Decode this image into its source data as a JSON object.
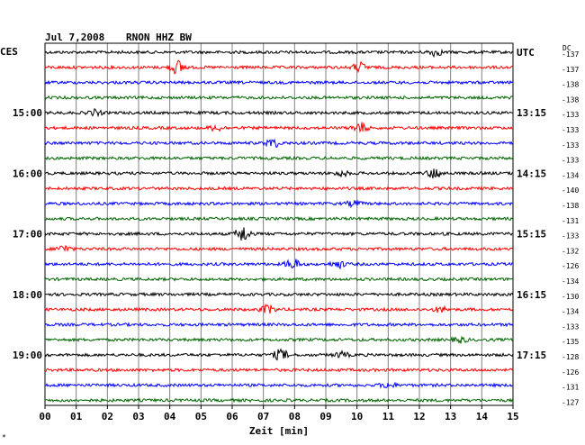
{
  "header": {
    "date": "Jul 7,2008",
    "station": "RNON HHZ BW",
    "left_zone": "CES",
    "right_zone": "UTC",
    "dc_label": "DC"
  },
  "chart_data": {
    "type": "line",
    "xlabel": "Zeit [min]",
    "xlim": [
      0,
      15
    ],
    "x_ticks": [
      "00",
      "01",
      "02",
      "03",
      "04",
      "05",
      "06",
      "07",
      "08",
      "09",
      "10",
      "11",
      "12",
      "13",
      "14",
      "15"
    ],
    "trace_colors": [
      "#000000",
      "#ff0000",
      "#0000ff",
      "#006600"
    ],
    "trace_count": 24,
    "left_hour_labels": [
      {
        "trace": 4,
        "label": "15:00"
      },
      {
        "trace": 8,
        "label": "16:00"
      },
      {
        "trace": 12,
        "label": "17:00"
      },
      {
        "trace": 16,
        "label": "18:00"
      },
      {
        "trace": 20,
        "label": "19:00"
      }
    ],
    "right_hour_labels": [
      {
        "trace": 0,
        "label": "UTC"
      },
      {
        "trace": 4,
        "label": "13:15"
      },
      {
        "trace": 8,
        "label": "14:15"
      },
      {
        "trace": 12,
        "label": "15:15"
      },
      {
        "trace": 16,
        "label": "16:15"
      },
      {
        "trace": 20,
        "label": "17:15"
      }
    ],
    "dc_offsets": [
      "-137",
      "-137",
      "-138",
      "-138",
      "-133",
      "-133",
      "-133",
      "-133",
      "-134",
      "-140",
      "-138",
      "-131",
      "-133",
      "-132",
      "-126",
      "-134",
      "-130",
      "-134",
      "-133",
      "-135",
      "-128",
      "-126",
      "-131",
      "-127"
    ],
    "events": [
      {
        "trace": 1,
        "x": 4.25,
        "amp": 8
      },
      {
        "trace": 1,
        "x": 10.1,
        "amp": 5
      },
      {
        "trace": 0,
        "x": 12.5,
        "amp": 4
      },
      {
        "trace": 4,
        "x": 1.6,
        "amp": 3
      },
      {
        "trace": 5,
        "x": 10.1,
        "amp": 6
      },
      {
        "trace": 5,
        "x": 5.5,
        "amp": 3
      },
      {
        "trace": 6,
        "x": 7.3,
        "amp": 5
      },
      {
        "trace": 8,
        "x": 12.5,
        "amp": 6
      },
      {
        "trace": 8,
        "x": 9.5,
        "amp": 3
      },
      {
        "trace": 10,
        "x": 9.9,
        "amp": 3
      },
      {
        "trace": 12,
        "x": 6.35,
        "amp": 9
      },
      {
        "trace": 13,
        "x": 0.6,
        "amp": 4
      },
      {
        "trace": 14,
        "x": 7.95,
        "amp": 6
      },
      {
        "trace": 14,
        "x": 9.4,
        "amp": 4
      },
      {
        "trace": 17,
        "x": 7.15,
        "amp": 5
      },
      {
        "trace": 17,
        "x": 12.7,
        "amp": 3
      },
      {
        "trace": 19,
        "x": 13.3,
        "amp": 3
      },
      {
        "trace": 20,
        "x": 7.55,
        "amp": 6
      },
      {
        "trace": 20,
        "x": 9.5,
        "amp": 3
      },
      {
        "trace": 22,
        "x": 11.0,
        "amp": 3
      }
    ]
  }
}
